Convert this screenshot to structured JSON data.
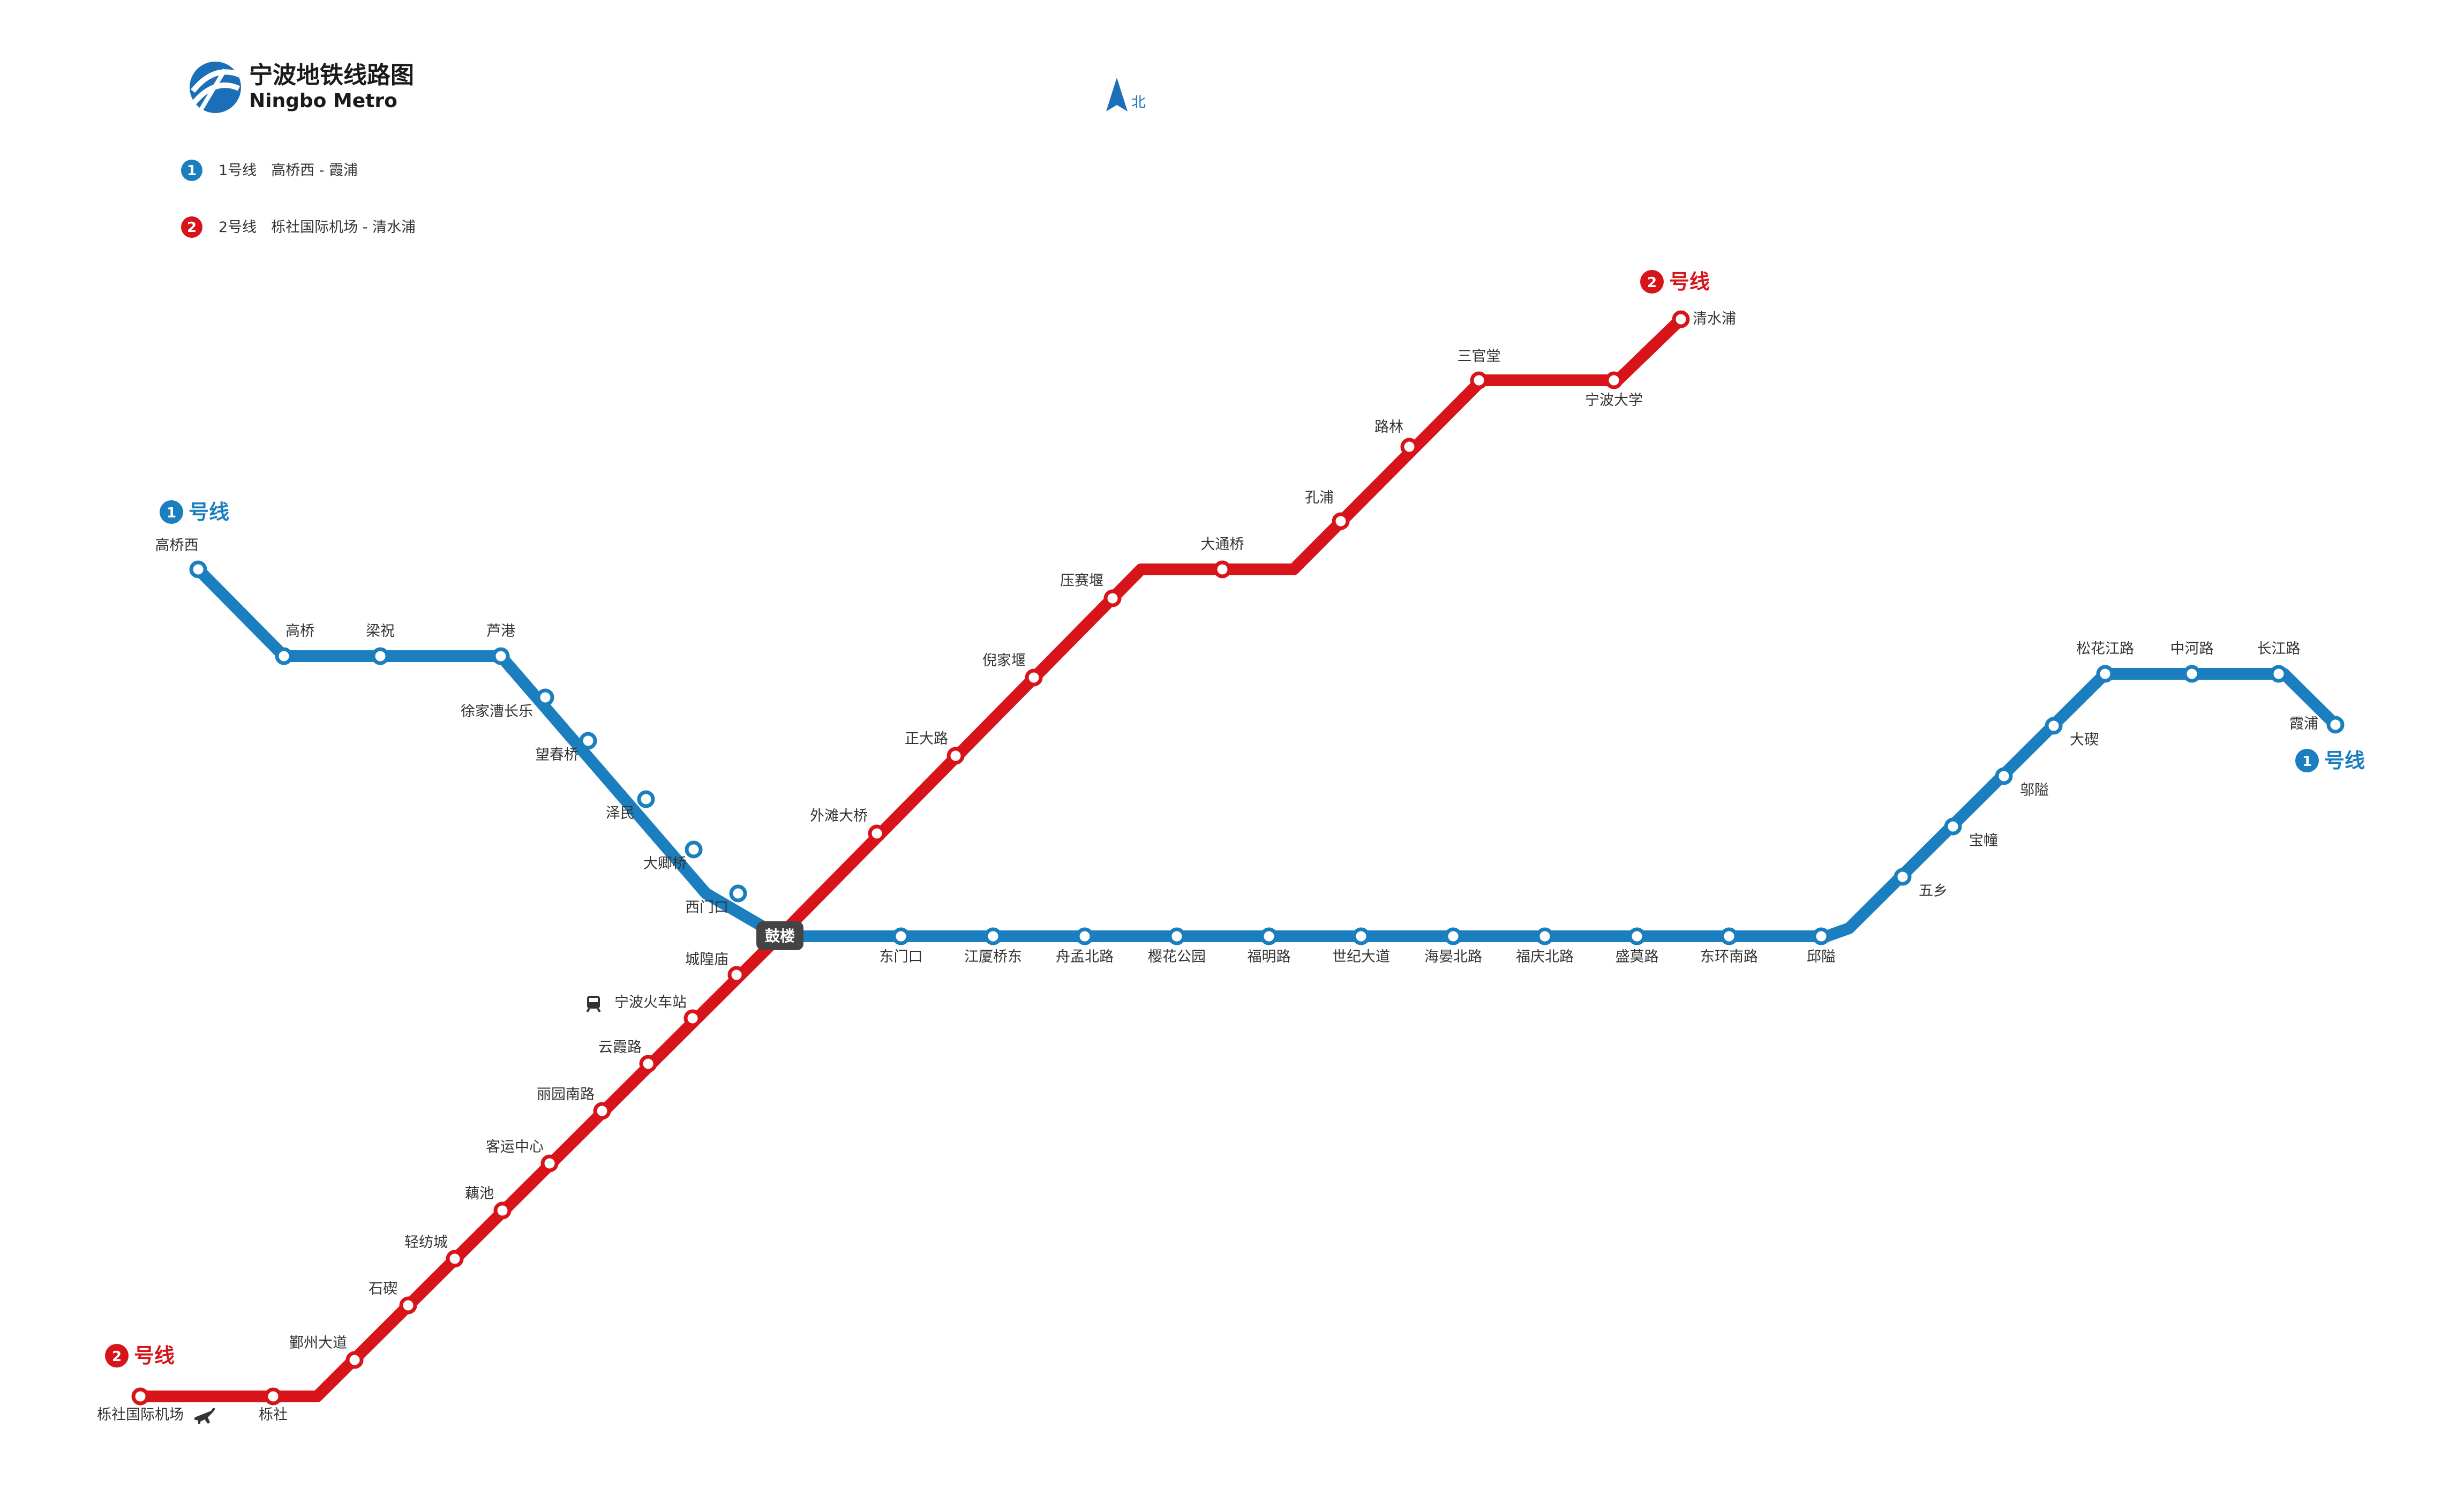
{
  "title": {
    "cn": "宁波地铁线路图",
    "en": "Ningbo Metro"
  },
  "compass": {
    "label": "北"
  },
  "colors": {
    "line1": "#1b7fbf",
    "line2": "#d7141a",
    "interchange": "#444444"
  },
  "legend": [
    {
      "number": "1",
      "text": "1号线　高桥西 - 霞浦"
    },
    {
      "number": "2",
      "text": "2号线　栎社国际机场 - 清水浦"
    }
  ],
  "line_tags": {
    "line1_west": {
      "number": "1",
      "label": "号线"
    },
    "line1_east": {
      "number": "1",
      "label": "号线"
    },
    "line2_north": {
      "number": "2",
      "label": "号线"
    },
    "line2_south": {
      "number": "2",
      "label": "号线"
    }
  },
  "interchange": {
    "name": "鼓楼"
  },
  "line1": {
    "name": "1号线",
    "stations": [
      "高桥西",
      "高桥",
      "梁祝",
      "芦港",
      "徐家漕长乐",
      "望春桥",
      "泽民",
      "大卿桥",
      "西门口",
      "鼓楼",
      "东门口",
      "江厦桥东",
      "舟孟北路",
      "樱花公园",
      "福明路",
      "世纪大道",
      "海晏北路",
      "福庆北路",
      "盛莫路",
      "东环南路",
      "邱隘",
      "五乡",
      "宝幢",
      "邬隘",
      "大碶",
      "松花江路",
      "中河路",
      "长江路",
      "霞浦"
    ]
  },
  "line2": {
    "name": "2号线",
    "stations": [
      "栎社国际机场",
      "栎社",
      "鄞州大道",
      "石碶",
      "轻纺城",
      "藕池",
      "客运中心",
      "丽园南路",
      "云霞路",
      "宁波火车站",
      "城隍庙",
      "鼓楼",
      "外滩大桥",
      "正大路",
      "倪家堰",
      "压赛堰",
      "大通桥",
      "孔浦",
      "路林",
      "三官堂",
      "宁波大学",
      "清水浦"
    ]
  },
  "icons": {
    "airport": "airplane-icon",
    "railway": "train-icon",
    "logo": "ningbo-metro-logo",
    "north": "north-arrow-icon"
  }
}
